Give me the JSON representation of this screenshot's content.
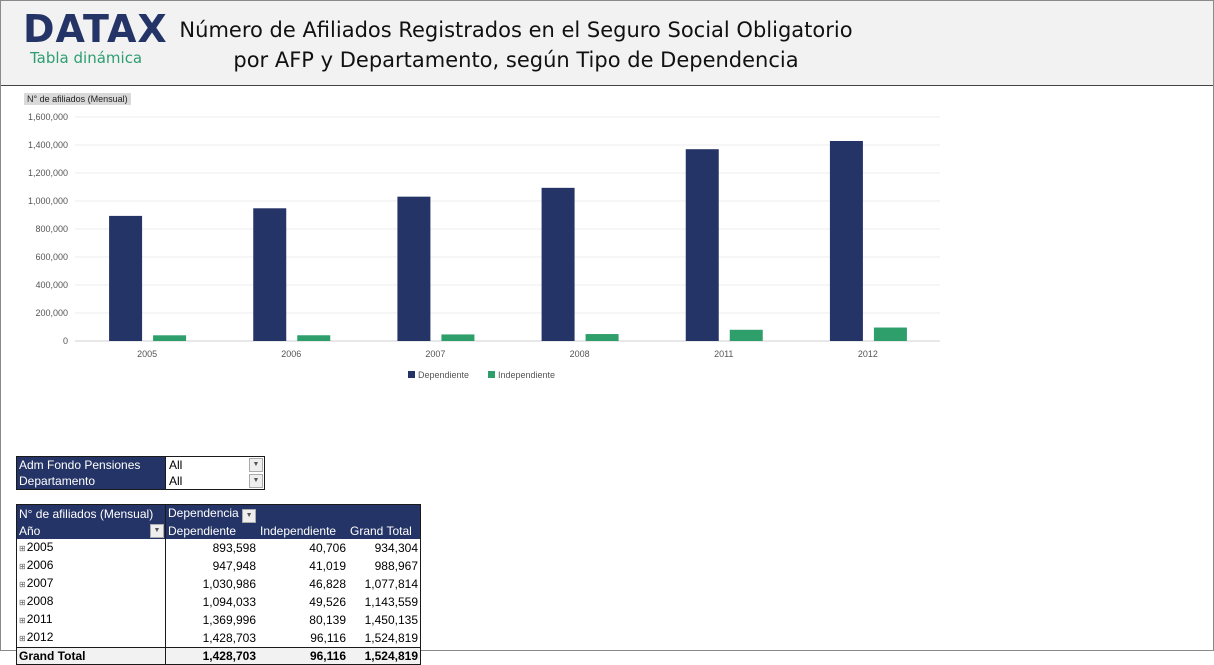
{
  "header": {
    "logo": "DATAX",
    "subtitle": "Tabla dinámica",
    "title_line1": "Número de Afiliados Registrados en el Seguro Social Obligatorio",
    "title_line2": "por AFP y Departamento, según Tipo de Dependencia"
  },
  "chart_data": {
    "type": "bar",
    "ylabel": "N° de afiliados (Mensual)",
    "categories": [
      "2005",
      "2006",
      "2007",
      "2008",
      "2011",
      "2012"
    ],
    "series": [
      {
        "name": "Dependiente",
        "color": "#253466",
        "values": [
          893598,
          947948,
          1030986,
          1094033,
          1369996,
          1428703
        ]
      },
      {
        "name": "Independiente",
        "color": "#2e9e6b",
        "values": [
          40706,
          41019,
          46828,
          49526,
          80139,
          96116
        ]
      }
    ],
    "ylim": [
      0,
      1600000
    ],
    "yticks": [
      "0",
      "200,000",
      "400,000",
      "600,000",
      "800,000",
      "1,000,000",
      "1,200,000",
      "1,400,000",
      "1,600,000"
    ],
    "grid": true,
    "legend": "bottom"
  },
  "filters": [
    {
      "label": "Adm Fondo Pensiones",
      "value": "All"
    },
    {
      "label": "Departamento",
      "value": "All"
    }
  ],
  "pivot": {
    "measure": "N° de afiliados (Mensual)",
    "col_field": "Dependencia",
    "row_field": "Año",
    "columns": [
      "Dependiente",
      "Independiente",
      "Grand Total"
    ],
    "rows": [
      [
        "2005",
        "893,598",
        "40,706",
        "934,304"
      ],
      [
        "2006",
        "947,948",
        "41,019",
        "988,967"
      ],
      [
        "2007",
        "1,030,986",
        "46,828",
        "1,077,814"
      ],
      [
        "2008",
        "1,094,033",
        "49,526",
        "1,143,559"
      ],
      [
        "2011",
        "1,369,996",
        "80,139",
        "1,450,135"
      ],
      [
        "2012",
        "1,428,703",
        "96,116",
        "1,524,819"
      ]
    ],
    "total": [
      "Grand Total",
      "1,428,703",
      "96,116",
      "1,524,819"
    ]
  }
}
